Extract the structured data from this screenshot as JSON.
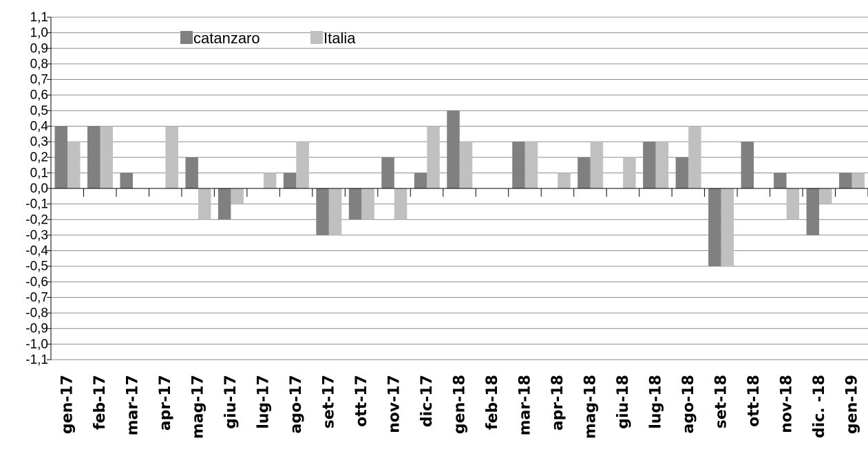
{
  "chart_data": {
    "type": "bar",
    "categories": [
      "gen-17",
      "feb-17",
      "mar-17",
      "apr-17",
      "mag-17",
      "giu-17",
      "lug-17",
      "ago-17",
      "set-17",
      "ott-17",
      "nov-17",
      "dic-17",
      "gen-18",
      "feb-18",
      "mar-18",
      "apr-18",
      "mag-18",
      "giu-18",
      "lug-18",
      "ago-18",
      "set-18",
      "ott-18",
      "nov-18",
      "dic. -18",
      "gen-19"
    ],
    "series": [
      {
        "name": "catanzaro",
        "color": "#808080",
        "values": [
          0.4,
          0.4,
          0.1,
          0.0,
          0.2,
          -0.2,
          0.0,
          0.1,
          -0.3,
          -0.2,
          0.2,
          0.1,
          0.5,
          0.0,
          0.3,
          0.0,
          0.2,
          0.0,
          0.3,
          0.2,
          -0.5,
          0.3,
          0.1,
          -0.3,
          0.1
        ]
      },
      {
        "name": "Italia",
        "color": "#c0c0c0",
        "values": [
          0.3,
          0.4,
          0.0,
          0.4,
          -0.2,
          -0.1,
          0.1,
          0.3,
          -0.3,
          -0.2,
          -0.2,
          0.4,
          0.3,
          0.0,
          0.3,
          0.1,
          0.3,
          0.2,
          0.3,
          0.4,
          -0.5,
          0.0,
          -0.2,
          -0.1,
          0.1
        ]
      }
    ],
    "yticks": [
      "-1,1",
      "-1,0",
      "-0,9",
      "-0,8",
      "-0,7",
      "-0,6",
      "-0,5",
      "-0,4",
      "-0,3",
      "-0,2",
      "-0,1",
      "0,0",
      "0,1",
      "0,2",
      "0,3",
      "0,4",
      "0,5",
      "0,6",
      "0,7",
      "0,8",
      "0,9",
      "1,0",
      "1,1"
    ],
    "ylim": [
      -1.1,
      1.1
    ],
    "grid": true,
    "legend": "top-left inside plot"
  }
}
